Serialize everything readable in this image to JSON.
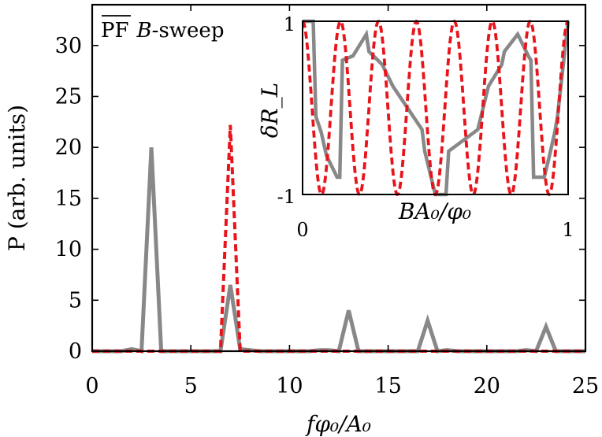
{
  "chart_data": [
    {
      "type": "line",
      "annotation": {
        "overline_part": "PF",
        "rest_part": "B",
        "suffix": "-sweep"
      },
      "xlabel": "fφ₀/A₀",
      "ylabel": "P (arb. units)",
      "xlim": [
        0,
        25
      ],
      "ylim": [
        0,
        34
      ],
      "xticks": [
        0,
        5,
        10,
        15,
        20,
        25
      ],
      "yticks": [
        0,
        5,
        10,
        15,
        20,
        25,
        30
      ],
      "xtick_labels": [
        "0",
        "5",
        "10",
        "15",
        "20",
        "25"
      ],
      "ytick_labels": [
        "0",
        "5",
        "10",
        "15",
        "20",
        "25",
        "30"
      ],
      "series": [
        {
          "color": "#888888",
          "style": "solid",
          "x": [
            0,
            0.5,
            1,
            1.5,
            2,
            2.5,
            3,
            3.5,
            4,
            4.5,
            5,
            5.5,
            6,
            6.5,
            7,
            7.5,
            8,
            8.5,
            9,
            9.5,
            10,
            10.5,
            11,
            11.5,
            12,
            12.5,
            13,
            13.5,
            14,
            14.5,
            15,
            15.5,
            16,
            16.5,
            17,
            17.5,
            18,
            18.5,
            19,
            19.5,
            20,
            20.5,
            21,
            21.5,
            22,
            22.5,
            23,
            23.5,
            24,
            24.5,
            25
          ],
          "y": [
            0,
            0,
            0,
            0,
            0.2,
            0,
            20,
            0,
            0,
            0,
            0,
            0,
            0,
            0,
            6.5,
            0.2,
            0.1,
            0,
            0,
            0,
            0,
            0,
            0,
            0.1,
            0.1,
            0,
            4,
            0,
            0,
            0,
            0,
            0,
            0,
            0,
            3,
            0,
            0.1,
            0,
            0,
            0,
            0,
            0,
            0,
            0,
            0.1,
            0,
            2.4,
            0,
            0,
            0,
            0
          ]
        },
        {
          "color": "#e8141b",
          "style": "dashed",
          "x": [
            0,
            0.5,
            1,
            1.5,
            2,
            2.5,
            3,
            3.5,
            4,
            4.5,
            5,
            5.5,
            6,
            6.5,
            7,
            7.5,
            8,
            8.5,
            9,
            9.5,
            10,
            10.5,
            11,
            11.5,
            12,
            12.5,
            13,
            13.5,
            14,
            14.5,
            15,
            15.5,
            16,
            16.5,
            17,
            17.5,
            18,
            18.5,
            19,
            19.5,
            20,
            20.5,
            21,
            21.5,
            22,
            22.5,
            23,
            23.5,
            24,
            24.5,
            25
          ],
          "y": [
            0,
            0,
            0,
            0,
            0,
            0,
            0,
            0,
            0,
            0,
            0,
            0,
            0,
            0,
            22.2,
            0,
            0,
            0,
            0,
            0,
            0,
            0,
            0,
            0,
            0,
            0,
            0,
            0,
            0,
            0,
            0,
            0,
            0,
            0,
            0,
            0,
            0,
            0,
            0,
            0,
            0,
            0,
            0,
            0,
            0,
            0,
            0,
            0,
            0,
            0,
            0
          ]
        }
      ]
    },
    {
      "type": "line",
      "xlabel": "BA₀/φ₀",
      "ylabel": "δR_L",
      "xlim": [
        0,
        1
      ],
      "ylim": [
        -1,
        1
      ],
      "xtick_labels": [
        "0",
        "1"
      ],
      "ytick_labels": [
        "1",
        "-1"
      ],
      "series": [
        {
          "color": "#888888",
          "style": "solid",
          "x": [
            0,
            0.04,
            0.05,
            0.07,
            0.09,
            0.13,
            0.14,
            0.15,
            0.19,
            0.24,
            0.25,
            0.3,
            0.34,
            0.45,
            0.46,
            0.5,
            0.54,
            0.55,
            0.66,
            0.7,
            0.75,
            0.76,
            0.81,
            0.85,
            0.86,
            0.87,
            0.91,
            0.93,
            0.95,
            0.96,
            1
          ],
          "y": [
            1,
            1,
            -0.1,
            -0.28,
            -0.55,
            -0.8,
            -0.8,
            0.55,
            0.6,
            0.85,
            0.65,
            0.5,
            0.25,
            -0.25,
            -0.5,
            -1,
            -1,
            -0.5,
            -0.25,
            0.25,
            0.5,
            0.65,
            0.85,
            0.6,
            0.55,
            -0.8,
            -0.8,
            -0.55,
            -0.28,
            -0.1,
            1
          ]
        },
        {
          "color": "#e8141b",
          "style": "dashed",
          "function": "cos(2*pi*7*x)"
        }
      ]
    }
  ]
}
